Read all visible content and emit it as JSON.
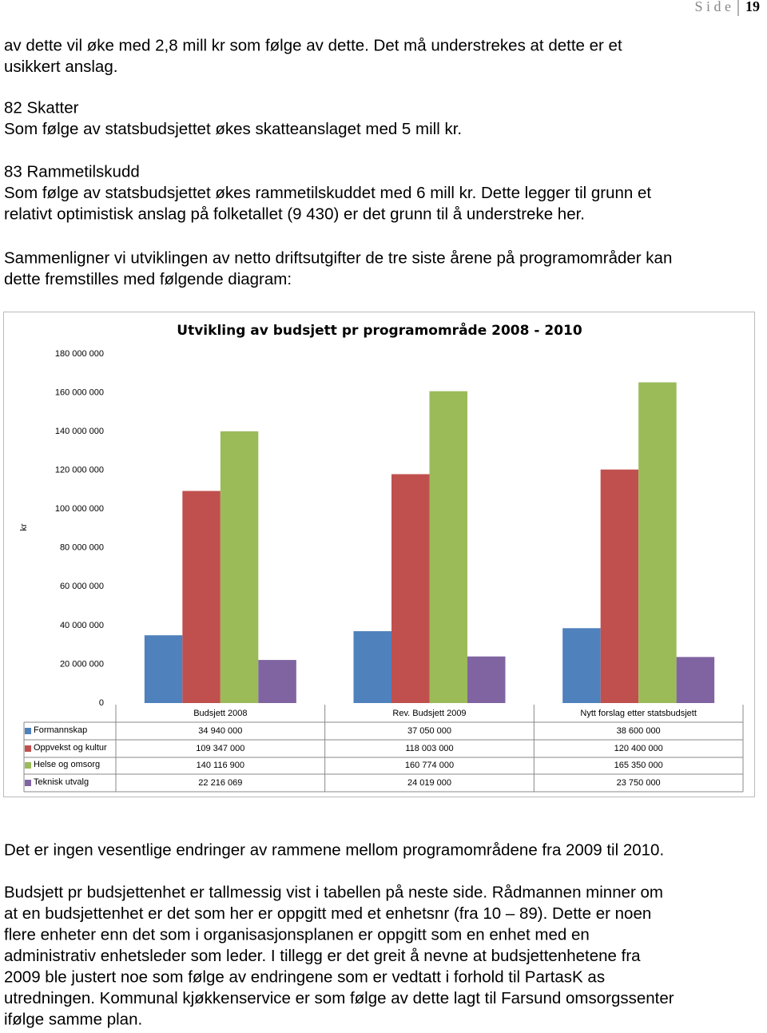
{
  "header": {
    "label": "S i d e",
    "page": "19"
  },
  "paragraphs": [
    [
      "av dette vil øke med 2,8 mill kr som følge av dette. Det må understrekes at dette er et",
      "usikkert anslag."
    ],
    [
      "82 Skatter",
      "Som følge av statsbudsjettet økes skatteanslaget med 5 mill kr."
    ],
    [
      "83 Rammetilskudd",
      "Som følge av statsbudsjettet økes rammetilskuddet med 6 mill kr. Dette legger til grunn et",
      "relativt optimistisk anslag på folketallet (9 430) er det grunn til å understreke her."
    ],
    [
      "Sammenligner vi utviklingen av netto driftsutgifter de tre siste årene på programområder kan",
      "dette fremstilles med følgende diagram:"
    ],
    [
      "Det er ingen vesentlige endringer av rammene mellom programområdene fra 2009 til 2010."
    ],
    [
      "Budsjett pr budsjettenhet er tallmessig vist i tabellen på neste side. Rådmannen minner om",
      "at en budsjettenhet er det som her er oppgitt med et enhetsnr (fra 10 – 89). Dette er noen",
      "flere enheter enn det som i organisasjonsplanen er oppgitt som en enhet med en",
      "administrativ enhetsleder som leder. I tillegg er det greit å nevne at budsjettenhetene fra",
      "2009 ble justert noe som følge av endringene som er vedtatt i forhold til PartasK as",
      "utredningen. Kommunal kjøkkenservice er som følge av dette lagt til Farsund omsorgssenter",
      "ifølge samme plan."
    ]
  ],
  "chart_data": {
    "type": "bar",
    "title": "Utvikling av budsjett pr programområde 2008 - 2010",
    "y_label": "kr",
    "categories": [
      "Budsjett 2008",
      "Rev. Budsjett  2009",
      "Nytt forslag etter statsbudsjett"
    ],
    "series": [
      {
        "name": "Formannskap",
        "color": "#4f81bd",
        "values": [
          34940000,
          37050000,
          38600000
        ],
        "value_labels": [
          "34 940 000",
          "37 050 000",
          "38 600 000"
        ]
      },
      {
        "name": "Oppvekst og kultur",
        "color": "#c0504d",
        "values": [
          109347000,
          118003000,
          120400000
        ],
        "value_labels": [
          "109 347 000",
          "118 003 000",
          "120 400 000"
        ]
      },
      {
        "name": "Helse og omsorg",
        "color": "#9bbb59",
        "values": [
          140116900,
          160774000,
          165350000
        ],
        "value_labels": [
          "140 116 900",
          "160 774 000",
          "165 350 000"
        ]
      },
      {
        "name": "Teknisk utvalg",
        "color": "#8064a2",
        "values": [
          22216069,
          24019000,
          23750000
        ],
        "value_labels": [
          "22 216 069",
          "24 019 000",
          "23 750 000"
        ]
      }
    ],
    "ylim": [
      0,
      180000000
    ],
    "yticks": [
      0,
      {
        "value": 20000000,
        "label": "20 000 000"
      },
      {
        "value": 40000000,
        "label": "40 000 000"
      },
      {
        "value": 60000000,
        "label": "60 000 000"
      },
      {
        "value": 80000000,
        "label": "80 000 000"
      },
      {
        "value": 100000000,
        "label": "100 000 000"
      },
      {
        "value": 120000000,
        "label": "120 000 000"
      },
      {
        "value": 140000000,
        "label": "140 000 000"
      },
      {
        "value": 160000000,
        "label": "160 000 000"
      },
      {
        "value": 180000000,
        "label": "180 000 000"
      }
    ],
    "grid": false
  }
}
